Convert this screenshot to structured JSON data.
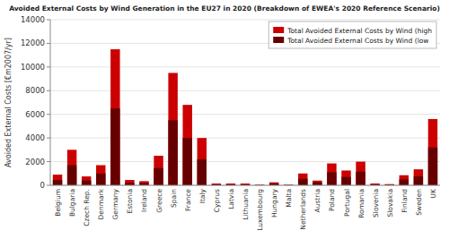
{
  "chart_data": {
    "type": "bar",
    "title": "Avoided External Costs by Wind Generation in the EU27 in 2020 (Breakdown of EWEA's 2020 Reference Scenario)",
    "y_label": "Avoided External Costs [€m2007/yr]",
    "categories": [
      "Belgium",
      "Bulgaria",
      "Czech Rep.",
      "Denmark",
      "Germany",
      "Estonia",
      "Ireland",
      "Greece",
      "Spain",
      "France",
      "Italy",
      "Cyprus",
      "Latvia",
      "Lithuania",
      "Luxembourg",
      "Hungary",
      "Malta",
      "Netherlands",
      "Austria",
      "Poland",
      "Portugal",
      "Romania",
      "Slovenia",
      "Slovakia",
      "Finland",
      "Sweden",
      "UK"
    ],
    "series": [
      {
        "name": "Total Avoided External Costs by Wind (high",
        "color": "#cc0000",
        "values": [
          900,
          3000,
          750,
          1700,
          11500,
          450,
          350,
          2500,
          9500,
          6800,
          4000,
          150,
          150,
          150,
          50,
          250,
          50,
          1000,
          400,
          1850,
          1250,
          2000,
          150,
          100,
          850,
          1350,
          5600
        ]
      },
      {
        "name": "Total Avoided External Costs by Wind (low",
        "color": "#660000",
        "values": [
          450,
          1700,
          400,
          1000,
          6500,
          200,
          200,
          1450,
          5500,
          4000,
          2200,
          75,
          75,
          75,
          25,
          150,
          25,
          550,
          250,
          1100,
          700,
          1150,
          80,
          50,
          500,
          750,
          3200
        ]
      }
    ],
    "stacked": false,
    "ylim": [
      0,
      14000
    ],
    "yticks": [
      0,
      2000,
      4000,
      6000,
      8000,
      10000,
      12000,
      14000
    ],
    "grid": true,
    "legend": "upper right"
  }
}
